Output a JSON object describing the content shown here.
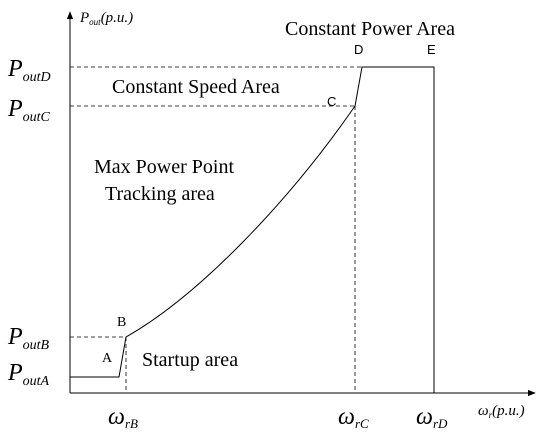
{
  "diagram": {
    "axes": {
      "y_axis_label_main": "P",
      "y_axis_label_sub": "out",
      "y_axis_label_suffix": "(p.u.)",
      "x_axis_label_main": "ω",
      "x_axis_label_sub": "r",
      "x_axis_label_suffix": "(p.u.)"
    },
    "y_ticks": [
      {
        "main": "P",
        "sub": "outD"
      },
      {
        "main": "P",
        "sub": "outC"
      },
      {
        "main": "P",
        "sub": "outB"
      },
      {
        "main": "P",
        "sub": "outA"
      }
    ],
    "x_ticks": [
      {
        "main": "ω",
        "sub": "rB"
      },
      {
        "main": "ω",
        "sub": "rC"
      },
      {
        "main": "ω",
        "sub": "rD"
      }
    ],
    "points": [
      "A",
      "B",
      "C",
      "D",
      "E"
    ],
    "regions": {
      "constant_power": "Constant Power Area",
      "constant_speed": "Constant Speed Area",
      "mppt_line1": "Max Power Point",
      "mppt_line2": "Tracking area",
      "startup": "Startup area"
    }
  }
}
